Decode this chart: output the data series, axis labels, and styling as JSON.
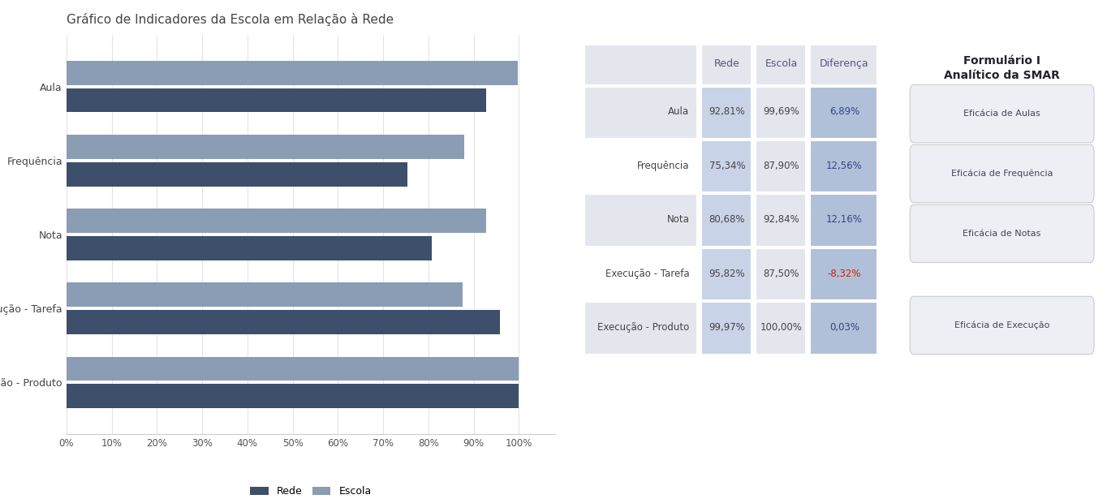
{
  "title": "Gráfico de Indicadores da Escola em Relação à Rede",
  "categories": [
    "Aula",
    "Frequência",
    "Nota",
    "Execução - Tarefa",
    "Execução - Produto"
  ],
  "rede_values": [
    92.81,
    75.34,
    80.68,
    95.82,
    99.97
  ],
  "escola_values": [
    99.69,
    87.9,
    92.84,
    87.5,
    100.0
  ],
  "rede_color": "#3d4f6a",
  "escola_color": "#8a9db5",
  "x_ticks": [
    0,
    10,
    20,
    30,
    40,
    50,
    60,
    70,
    80,
    90,
    100
  ],
  "x_tick_labels": [
    "0%",
    "10%",
    "20%",
    "30%",
    "40%",
    "50%",
    "60%",
    "70%",
    "80%",
    "90%",
    "100%"
  ],
  "legend_rede": "Rede",
  "legend_escola": "Escola",
  "table_headers": [
    "",
    "Rede",
    "Escola",
    "Diferença"
  ],
  "table_rows": [
    [
      "Aula",
      "92,81%",
      "99,69%",
      "6,89%"
    ],
    [
      "Frequência",
      "75,34%",
      "87,90%",
      "12,56%"
    ],
    [
      "Nota",
      "80,68%",
      "92,84%",
      "12,16%"
    ],
    [
      "Execução - Tarefa",
      "95,82%",
      "87,50%",
      "-8,32%"
    ],
    [
      "Execução - Produto",
      "99,97%",
      "100,00%",
      "0,03%"
    ]
  ],
  "diff_values": [
    6.89,
    12.56,
    12.16,
    -8.32,
    0.03
  ],
  "sidebar_title": "Formulário I\nAnalítico da SMAR",
  "sidebar_buttons": [
    "Eficácia de Aulas",
    "Eficácia de Frequência",
    "Eficácia de Notas",
    "Eficácia de Execução"
  ],
  "bg_color": "#ffffff",
  "page_bg": "#f0f0f0",
  "table_header_bg": "#e4e6ee",
  "table_rede_bg": "#c8d3e8",
  "table_escola_bg": "#e4e6ee",
  "table_diff_pos_bg": "#b0c0d8",
  "table_diff_neg_bg": "#b0c0d8",
  "diff_neg_text": "#cc2200",
  "diff_pos_text": "#334488"
}
